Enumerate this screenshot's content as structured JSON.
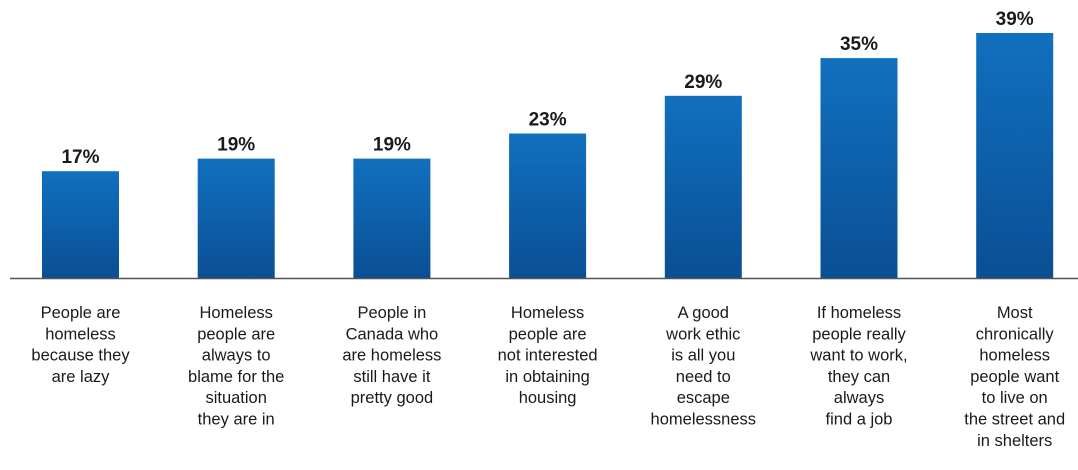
{
  "chart_data": {
    "type": "bar",
    "categories": [
      [
        "People are",
        "homeless",
        "because they",
        "are lazy"
      ],
      [
        "Homeless",
        "people are",
        "always to",
        "blame for the",
        "situation",
        "they are in"
      ],
      [
        "People in",
        "Canada who",
        "are homeless",
        "still have it",
        "pretty good"
      ],
      [
        "Homeless",
        "people are",
        "not interested",
        "in obtaining",
        "housing"
      ],
      [
        "A good",
        "work ethic",
        "is all you",
        "need to",
        "escape",
        "homelessness"
      ],
      [
        "If homeless",
        "people really",
        "want to work,",
        "they can",
        "always",
        "find a job"
      ],
      [
        "Most",
        "chronically",
        "homeless",
        "people want",
        "to live on",
        "the street and",
        "in shelters"
      ]
    ],
    "values": [
      17,
      19,
      19,
      23,
      29,
      35,
      39
    ],
    "value_labels": [
      "17%",
      "19%",
      "19%",
      "23%",
      "29%",
      "35%",
      "39%"
    ],
    "title": "",
    "xlabel": "",
    "ylabel": "",
    "ylim": [
      0,
      39
    ],
    "grid": false,
    "legend": "none",
    "colors": {
      "bar_top": "#1170bf",
      "bar_bottom": "#0a4f94",
      "axis": "#555555",
      "text": "#1a1a1a"
    }
  }
}
